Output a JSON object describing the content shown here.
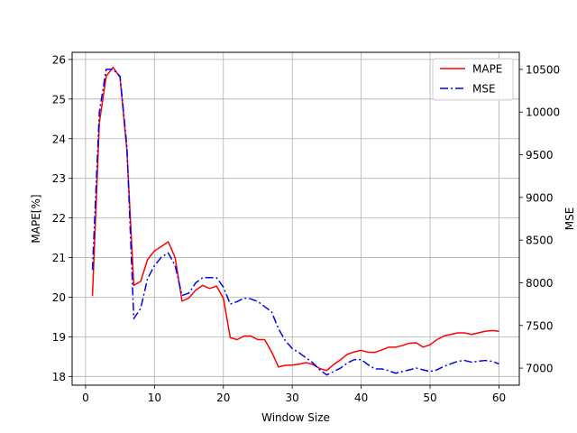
{
  "chart_data": {
    "type": "line",
    "title": "",
    "xlabel": "Window Size",
    "ylabel": "MAPE[%]",
    "y2label": "MSE",
    "xlim": [
      -1.95,
      62.95
    ],
    "ylim": [
      17.78,
      26.18
    ],
    "y2lim": [
      6800,
      10700
    ],
    "xticks": [
      0,
      10,
      20,
      30,
      40,
      50,
      60
    ],
    "yticks": [
      18,
      19,
      20,
      21,
      22,
      23,
      24,
      25,
      26
    ],
    "y2ticks": [
      7000,
      7500,
      8000,
      8500,
      9000,
      9500,
      10000,
      10500
    ],
    "grid": true,
    "legend": "upper right",
    "x": [
      1,
      2,
      3,
      4,
      5,
      6,
      7,
      8,
      9,
      10,
      11,
      12,
      13,
      14,
      15,
      16,
      17,
      18,
      19,
      20,
      21,
      22,
      23,
      24,
      25,
      26,
      27,
      28,
      29,
      30,
      31,
      32,
      33,
      34,
      35,
      36,
      37,
      38,
      39,
      40,
      41,
      42,
      43,
      44,
      45,
      46,
      47,
      48,
      49,
      50,
      51,
      52,
      53,
      54,
      55,
      56,
      57,
      58,
      59,
      60
    ],
    "series": [
      {
        "name": "MAPE",
        "axis": "left",
        "color": "#ff0000",
        "style": "solid",
        "values": [
          20.03,
          24.4,
          25.58,
          25.8,
          25.55,
          23.7,
          20.3,
          20.4,
          20.95,
          21.17,
          21.28,
          21.4,
          21.0,
          19.9,
          19.98,
          20.18,
          20.3,
          20.22,
          20.28,
          19.98,
          18.98,
          18.93,
          19.02,
          19.02,
          18.93,
          18.93,
          18.62,
          18.24,
          18.28,
          18.29,
          18.31,
          18.35,
          18.3,
          18.2,
          18.15,
          18.3,
          18.42,
          18.56,
          18.62,
          18.66,
          18.61,
          18.61,
          18.67,
          18.74,
          18.74,
          18.78,
          18.84,
          18.85,
          18.74,
          18.8,
          18.93,
          19.02,
          19.06,
          19.1,
          19.1,
          19.06,
          19.1,
          19.14,
          19.16,
          19.14
        ]
      },
      {
        "name": "MSE",
        "axis": "right",
        "color": "#0000ff",
        "style": "dashdot",
        "values": [
          8150,
          10000,
          10500,
          10500,
          10420,
          9600,
          7580,
          7700,
          8050,
          8200,
          8300,
          8350,
          8200,
          7850,
          7880,
          8000,
          8060,
          8060,
          8060,
          7950,
          7750,
          7780,
          7820,
          7810,
          7780,
          7720,
          7660,
          7460,
          7320,
          7230,
          7180,
          7120,
          7060,
          6980,
          6920,
          6960,
          7000,
          7060,
          7100,
          7100,
          7040,
          6990,
          6990,
          6970,
          6940,
          6960,
          6980,
          7000,
          6980,
          6960,
          6980,
          7020,
          7050,
          7080,
          7090,
          7070,
          7080,
          7090,
          7080,
          7050
        ]
      }
    ]
  }
}
